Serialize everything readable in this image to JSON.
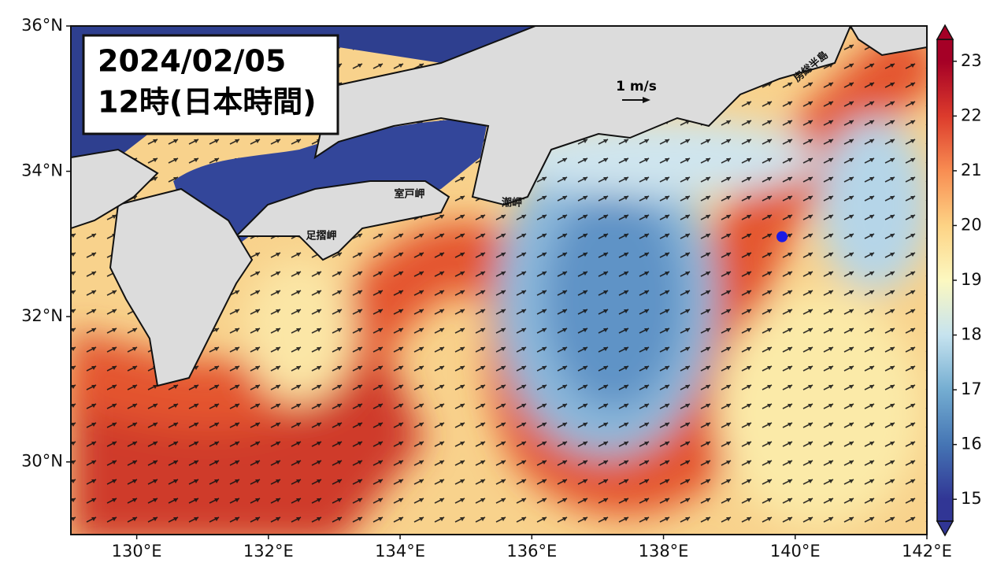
{
  "title": {
    "date": "2024/02/05",
    "time": "12時(日本時間)"
  },
  "map": {
    "lonlim": [
      129,
      142
    ],
    "latlim": [
      29,
      36
    ],
    "lonticks": [
      {
        "value": 130,
        "label": "130°E"
      },
      {
        "value": 132,
        "label": "132°E"
      },
      {
        "value": 134,
        "label": "134°E"
      },
      {
        "value": 136,
        "label": "136°E"
      },
      {
        "value": 138,
        "label": "138°E"
      },
      {
        "value": 140,
        "label": "140°E"
      },
      {
        "value": 142,
        "label": "142°E"
      }
    ],
    "latticks": [
      {
        "value": 30,
        "label": "30°N"
      },
      {
        "value": 32,
        "label": "32°N"
      },
      {
        "value": 34,
        "label": "34°N"
      },
      {
        "value": 36,
        "label": "36°N"
      }
    ]
  },
  "colorbar": {
    "clim": [
      14.6,
      23.4
    ],
    "ticks": [
      15,
      16,
      17,
      18,
      19,
      20,
      21,
      22,
      23
    ],
    "colors": [
      "#313695",
      "#4575b4",
      "#74add1",
      "#c6e3ef",
      "#fcf8c0",
      "#fdd385",
      "#f88d52",
      "#dc3b2c",
      "#a50026"
    ]
  },
  "scale": {
    "label": "1 m/s"
  },
  "places": [
    "足摺岬",
    "室戸岬",
    "潮岬",
    "房総半島"
  ],
  "marker": {
    "lon": 139.8,
    "lat": 33.1,
    "color": "#1a1ae6"
  }
}
